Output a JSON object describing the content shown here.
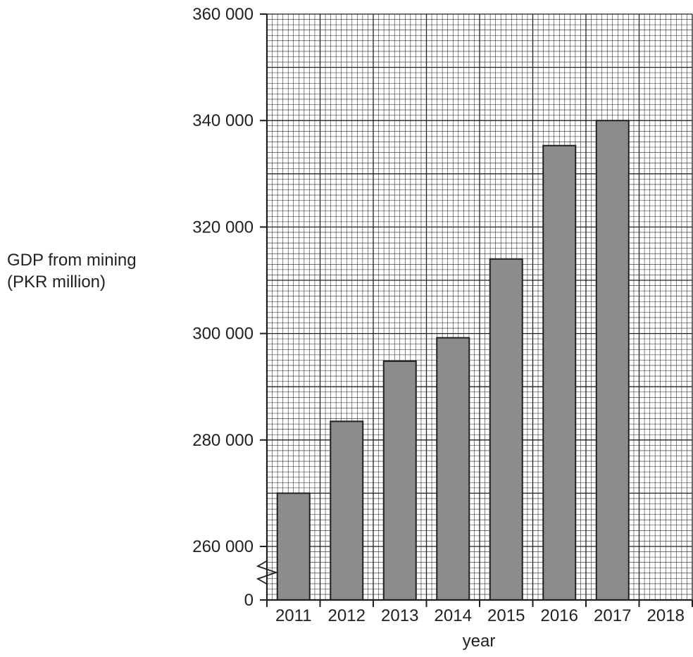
{
  "chart_data": {
    "type": "bar",
    "categories": [
      "2011",
      "2012",
      "2013",
      "2014",
      "2015",
      "2016",
      "2017",
      "2018"
    ],
    "values": [
      270000,
      283500,
      294800,
      299200,
      314000,
      335300,
      340000,
      null
    ],
    "xlabel": "year",
    "ylabel_lines": [
      "GDP from mining",
      "(PKR million)"
    ],
    "y_ticks": [
      {
        "value": 360000,
        "label": "360 000"
      },
      {
        "value": 340000,
        "label": "340 000"
      },
      {
        "value": 320000,
        "label": "320 000"
      },
      {
        "value": 300000,
        "label": "300 000"
      },
      {
        "value": 280000,
        "label": "280 000"
      },
      {
        "value": 260000,
        "label": "260 000"
      },
      {
        "value": 0,
        "label": "0"
      }
    ],
    "ylim": [
      0,
      360000
    ],
    "axis_break": "between 0 and 260 000",
    "grid": true,
    "colors": {
      "bar_fill": "#8c8c8c",
      "ink": "#231f20",
      "background": "#ffffff"
    }
  }
}
